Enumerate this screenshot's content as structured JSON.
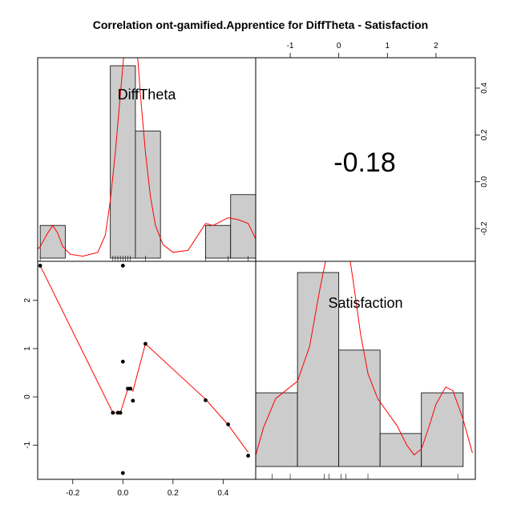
{
  "chart_data": {
    "type": "scatter-matrix",
    "title": "Correlation ont-gamified.Apprentice for DiffTheta - Satisfaction",
    "variables": [
      "DiffTheta",
      "Satisfaction"
    ],
    "correlation": "-0.18",
    "axes": {
      "difftheta": {
        "range": [
          -0.34,
          0.53
        ],
        "ticks": [
          -0.2,
          0.0,
          0.2,
          0.4
        ],
        "tick_labels": [
          "-0.2",
          "0.0",
          "0.2",
          "0.4"
        ]
      },
      "satisfaction": {
        "range": [
          -1.71,
          2.81
        ],
        "ticks": [
          -1,
          0,
          1,
          2
        ],
        "tick_labels": [
          "-1",
          "0",
          "1",
          "2"
        ]
      },
      "right_axis": {
        "ticks": [
          -0.2,
          0.0,
          0.2,
          0.4
        ],
        "tick_labels": [
          "-0.2",
          "0.0",
          "0.2",
          "0.4"
        ]
      },
      "top_axis": {
        "ticks": [
          -1,
          0,
          1,
          2
        ],
        "tick_labels": [
          "-1",
          "0",
          "1",
          "2"
        ]
      }
    },
    "histograms": {
      "difftheta": {
        "breaks": [
          -0.33,
          -0.23,
          -0.05,
          0.05,
          0.15,
          0.33,
          0.43,
          0.53
        ],
        "heights": [
          0.17,
          0,
          1.0,
          0.66,
          0,
          0.17,
          0.33
        ],
        "density": [
          [
            -0.36,
            0.02
          ],
          [
            -0.33,
            0.06
          ],
          [
            -0.3,
            0.13
          ],
          [
            -0.28,
            0.17
          ],
          [
            -0.26,
            0.13
          ],
          [
            -0.24,
            0.06
          ],
          [
            -0.21,
            0.02
          ],
          [
            -0.16,
            0.01
          ],
          [
            -0.1,
            0.03
          ],
          [
            -0.07,
            0.12
          ],
          [
            -0.05,
            0.3
          ],
          [
            -0.03,
            0.55
          ],
          [
            -0.01,
            0.85
          ],
          [
            0.01,
            1.15
          ],
          [
            0.03,
            1.35
          ],
          [
            0.05,
            1.2
          ],
          [
            0.07,
            0.85
          ],
          [
            0.09,
            0.55
          ],
          [
            0.11,
            0.32
          ],
          [
            0.13,
            0.17
          ],
          [
            0.16,
            0.07
          ],
          [
            0.2,
            0.03
          ],
          [
            0.26,
            0.04
          ],
          [
            0.3,
            0.12
          ],
          [
            0.33,
            0.18
          ],
          [
            0.36,
            0.17
          ],
          [
            0.39,
            0.19
          ],
          [
            0.42,
            0.21
          ],
          [
            0.46,
            0.2
          ],
          [
            0.5,
            0.18
          ],
          [
            0.53,
            0.1
          ],
          [
            0.56,
            0.02
          ]
        ]
      },
      "satisfaction": {
        "breaks": [
          -1.71,
          -0.85,
          0.0,
          0.85,
          1.7,
          2.56
        ],
        "heights": [
          0.38,
          1.0,
          0.6,
          0.17,
          0.38
        ],
        "density": [
          [
            -1.72,
            0.05
          ],
          [
            -1.55,
            0.2
          ],
          [
            -1.3,
            0.35
          ],
          [
            -1.05,
            0.4
          ],
          [
            -0.85,
            0.44
          ],
          [
            -0.6,
            0.62
          ],
          [
            -0.4,
            0.9
          ],
          [
            -0.2,
            1.15
          ],
          [
            0.0,
            1.3
          ],
          [
            0.15,
            1.2
          ],
          [
            0.3,
            0.95
          ],
          [
            0.45,
            0.68
          ],
          [
            0.6,
            0.48
          ],
          [
            0.8,
            0.35
          ],
          [
            1.0,
            0.28
          ],
          [
            1.2,
            0.21
          ],
          [
            1.4,
            0.11
          ],
          [
            1.55,
            0.06
          ],
          [
            1.7,
            0.09
          ],
          [
            1.85,
            0.2
          ],
          [
            2.0,
            0.32
          ],
          [
            2.2,
            0.41
          ],
          [
            2.35,
            0.39
          ],
          [
            2.55,
            0.25
          ],
          [
            2.75,
            0.07
          ]
        ]
      }
    },
    "rug": {
      "difftheta": [
        -0.33,
        -0.04,
        -0.03,
        -0.02,
        -0.01,
        0.0,
        0.01,
        0.02,
        0.03,
        0.09,
        0.33,
        0.42,
        0.5
      ],
      "satisfaction": [
        -1.37,
        -1.0,
        -0.3,
        -0.2,
        0.05,
        0.15,
        0.6,
        2.45
      ]
    },
    "scatter": {
      "points": [
        {
          "x": -0.33,
          "y": 2.72
        },
        {
          "x": -0.04,
          "y": -0.33
        },
        {
          "x": -0.02,
          "y": -0.33
        },
        {
          "x": -0.01,
          "y": -0.33
        },
        {
          "x": 0.0,
          "y": 2.72
        },
        {
          "x": 0.0,
          "y": 0.73
        },
        {
          "x": 0.0,
          "y": -1.58
        },
        {
          "x": 0.02,
          "y": 0.17
        },
        {
          "x": 0.03,
          "y": 0.17
        },
        {
          "x": 0.04,
          "y": -0.08
        },
        {
          "x": 0.09,
          "y": 1.1
        },
        {
          "x": 0.33,
          "y": -0.07
        },
        {
          "x": 0.42,
          "y": -0.57
        },
        {
          "x": 0.5,
          "y": -1.22
        }
      ],
      "smooth": [
        [
          -0.33,
          2.72
        ],
        [
          -0.04,
          -0.33
        ],
        [
          -0.01,
          -0.33
        ],
        [
          0.02,
          0.17
        ],
        [
          0.03,
          0.17
        ],
        [
          0.04,
          0.12
        ],
        [
          0.09,
          1.1
        ],
        [
          0.33,
          -0.05
        ],
        [
          0.42,
          -0.58
        ],
        [
          0.5,
          -1.15
        ]
      ]
    }
  }
}
